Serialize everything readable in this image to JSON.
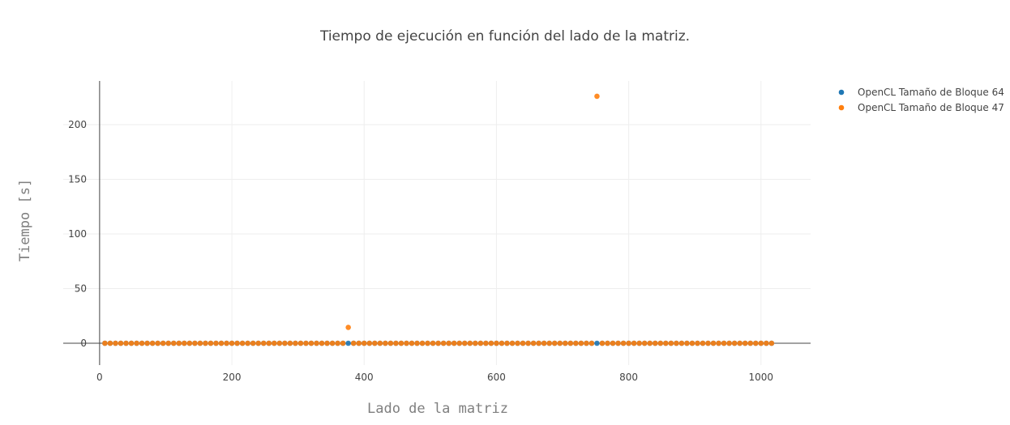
{
  "chart_data": {
    "type": "scatter",
    "title": "Tiempo de ejecución en función del lado de la matriz.",
    "xlabel": "Lado de la matriz",
    "ylabel": "Tiempo [s]",
    "xlim": [
      -55,
      1075
    ],
    "ylim": [
      -20,
      240
    ],
    "x_ticks": [
      0,
      200,
      400,
      600,
      800,
      1000
    ],
    "y_ticks": [
      0,
      50,
      100,
      150,
      200
    ],
    "grid": true,
    "legend_position": "top-right",
    "x_start": 8,
    "x_step": 8,
    "x_count": 127,
    "series": [
      {
        "name": "OpenCL Tamaño de Bloque 64",
        "color": "#1f77b4",
        "baseline_y": 0,
        "exceptions": []
      },
      {
        "name": "OpenCL Tamaño de Bloque 47",
        "color": "#ff7f0e",
        "baseline_y": 0,
        "exceptions": [
          {
            "x": 376,
            "y": 14.5
          },
          {
            "x": 752,
            "y": 226
          }
        ]
      }
    ]
  }
}
